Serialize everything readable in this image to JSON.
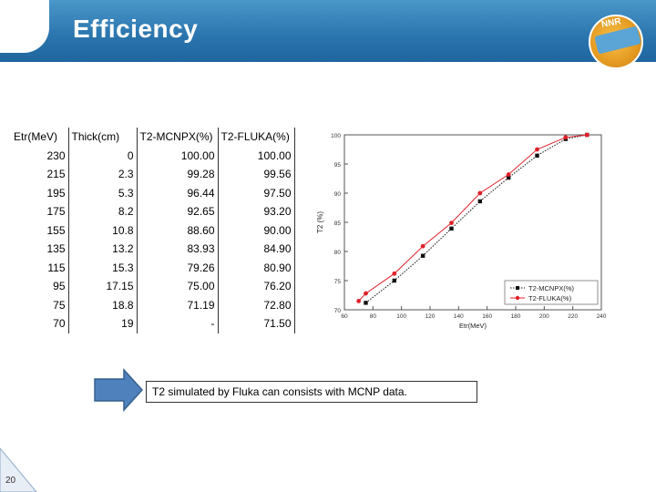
{
  "slide": {
    "title": "Efficiency",
    "logo_text": "NNR",
    "page_number": "20",
    "note": "T2 simulated by Fluka can consists with MCNP data."
  },
  "table": {
    "headers": [
      "Etr(MeV)",
      "Thick(cm)",
      "T2-MCNPX(%)",
      "T2-FLUKA(%)"
    ],
    "rows": [
      [
        "230",
        "0",
        "100.00",
        "100.00"
      ],
      [
        "215",
        "2.3",
        "99.28",
        "99.56"
      ],
      [
        "195",
        "5.3",
        "96.44",
        "97.50"
      ],
      [
        "175",
        "8.2",
        "92.65",
        "93.20"
      ],
      [
        "155",
        "10.8",
        "88.60",
        "90.00"
      ],
      [
        "135",
        "13.2",
        "83.93",
        "84.90"
      ],
      [
        "115",
        "15.3",
        "79.26",
        "80.90"
      ],
      [
        "95",
        "17.15",
        "75.00",
        "76.20"
      ],
      [
        "75",
        "18.8",
        "71.19",
        "72.80"
      ],
      [
        "70",
        "19",
        "-",
        "71.50"
      ]
    ]
  },
  "chart_data": {
    "type": "line",
    "xlabel": "Etr(MeV)",
    "ylabel": "T2 (%)",
    "xlim": [
      60,
      240
    ],
    "ylim": [
      70,
      100
    ],
    "xticks": [
      60,
      80,
      100,
      120,
      140,
      160,
      180,
      200,
      220,
      240
    ],
    "yticks": [
      70,
      75,
      80,
      85,
      90,
      95,
      100
    ],
    "legend_position": "bottom-right",
    "series": [
      {
        "name": "T2-MCNPX(%)",
        "color": "#111111",
        "marker": "square",
        "line_style": "dotted",
        "x": [
          75,
          95,
          115,
          135,
          155,
          175,
          195,
          215,
          230
        ],
        "y": [
          71.19,
          75.0,
          79.26,
          83.93,
          88.6,
          92.65,
          96.44,
          99.28,
          100.0
        ]
      },
      {
        "name": "T2-FLUKA(%)",
        "color": "#e0202a",
        "marker": "circle",
        "line_style": "solid",
        "x": [
          70,
          75,
          95,
          115,
          135,
          155,
          175,
          195,
          215,
          230
        ],
        "y": [
          71.5,
          72.8,
          76.2,
          80.9,
          84.9,
          90.0,
          93.2,
          97.5,
          99.56,
          100.0
        ]
      }
    ]
  }
}
